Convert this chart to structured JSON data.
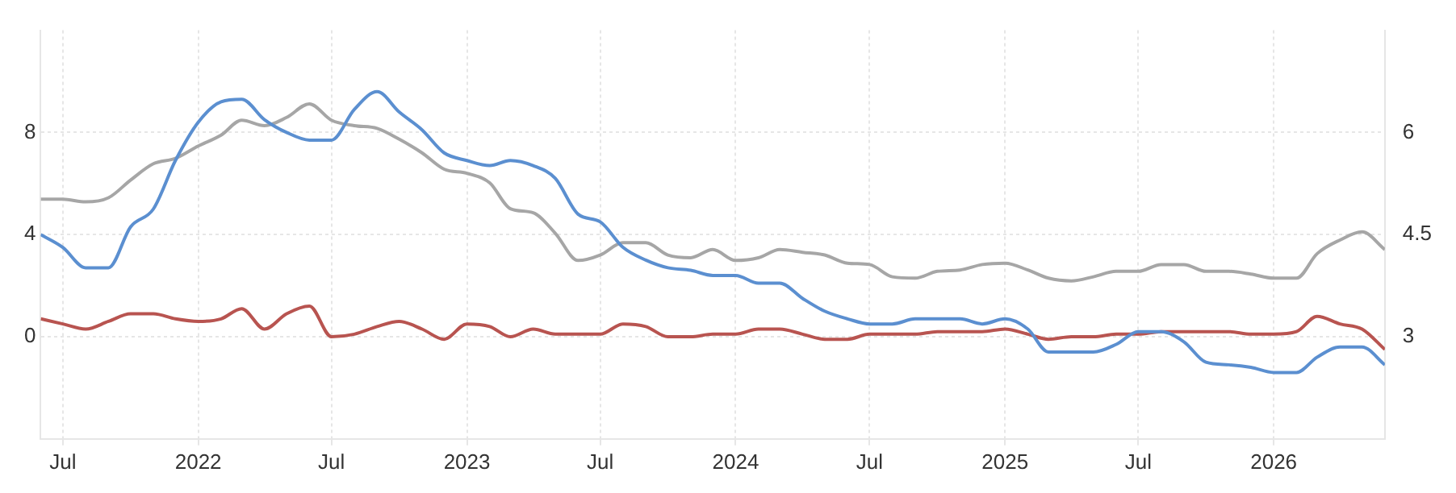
{
  "chart_data": {
    "type": "line",
    "x": [
      "2021-06",
      "2021-07",
      "2021-08",
      "2021-09",
      "2021-10",
      "2021-11",
      "2021-12",
      "2022-01",
      "2022-02",
      "2022-03",
      "2022-04",
      "2022-05",
      "2022-06",
      "2022-07",
      "2022-08",
      "2022-09",
      "2022-10",
      "2022-11",
      "2022-12",
      "2023-01",
      "2023-02",
      "2023-03",
      "2023-04",
      "2023-05",
      "2023-06",
      "2023-07",
      "2023-08",
      "2023-09",
      "2023-10",
      "2023-11",
      "2023-12",
      "2024-01",
      "2024-02",
      "2024-03",
      "2024-04",
      "2024-05",
      "2024-06",
      "2024-07",
      "2024-08",
      "2024-09",
      "2024-10",
      "2024-11",
      "2024-12",
      "2025-01",
      "2025-02",
      "2025-03",
      "2025-04",
      "2025-05",
      "2025-06",
      "2025-07",
      "2025-08",
      "2025-09",
      "2025-10",
      "2025-11",
      "2025-12",
      "2026-01",
      "2026-02",
      "2026-03",
      "2026-04",
      "2026-05",
      "2026-06"
    ],
    "series": [
      {
        "color": "#5b8fd0",
        "values": [
          4.0,
          3.5,
          2.7,
          2.7,
          4.3,
          5.0,
          6.9,
          8.4,
          9.2,
          9.3,
          8.5,
          8.0,
          7.7,
          7.7,
          8.9,
          9.6,
          8.8,
          8.1,
          7.2,
          6.9,
          6.7,
          6.9,
          6.7,
          6.2,
          4.8,
          4.5,
          3.5,
          3.0,
          2.7,
          2.6,
          2.4,
          2.4,
          2.1,
          2.1,
          1.5,
          1.0,
          0.7,
          0.5,
          0.5,
          0.7,
          0.7,
          0.7,
          0.5,
          0.7,
          0.3,
          -0.6,
          -0.6,
          -0.6,
          -0.3,
          0.2,
          0.2,
          -0.2,
          -1.0,
          -1.1,
          -1.2,
          -1.4,
          -1.4,
          -0.8,
          -0.4,
          -0.4,
          -1.1
        ]
      },
      {
        "color": "#a6a6a6",
        "axis": "y2",
        "values": [
          5.02,
          5.02,
          4.98,
          5.04,
          5.3,
          5.54,
          5.62,
          5.8,
          5.96,
          6.18,
          6.1,
          6.22,
          6.42,
          6.18,
          6.1,
          6.06,
          5.9,
          5.7,
          5.46,
          5.4,
          5.26,
          4.88,
          4.82,
          4.52,
          4.12,
          4.2,
          4.38,
          4.38,
          4.2,
          4.16,
          4.28,
          4.12,
          4.16,
          4.28,
          4.24,
          4.2,
          4.08,
          4.06,
          3.88,
          3.86,
          3.96,
          3.98,
          4.06,
          4.08,
          3.98,
          3.86,
          3.82,
          3.88,
          3.96,
          3.96,
          4.06,
          4.06,
          3.96,
          3.96,
          3.92,
          3.86,
          3.86,
          4.22,
          4.42,
          4.54,
          4.28
        ]
      },
      {
        "color": "#b85450",
        "values": [
          0.7,
          0.5,
          0.3,
          0.6,
          0.9,
          0.9,
          0.7,
          0.6,
          0.7,
          1.1,
          0.3,
          0.9,
          1.2,
          0.0,
          0.1,
          0.4,
          0.6,
          0.3,
          -0.1,
          0.5,
          0.4,
          0.0,
          0.3,
          0.1,
          0.1,
          0.1,
          0.5,
          0.4,
          0.0,
          0.0,
          0.1,
          0.1,
          0.3,
          0.3,
          0.1,
          -0.1,
          -0.1,
          0.1,
          0.1,
          0.1,
          0.2,
          0.2,
          0.2,
          0.3,
          0.1,
          -0.1,
          0.0,
          0.0,
          0.1,
          0.1,
          0.2,
          0.2,
          0.2,
          0.2,
          0.1,
          0.1,
          0.2,
          0.8,
          0.5,
          0.3,
          -0.5
        ]
      }
    ],
    "xlim": [
      "2021-06",
      "2026-06"
    ],
    "xticks": [
      {
        "value": "2021-07",
        "label": "Jul"
      },
      {
        "value": "2022-01",
        "label": "2022"
      },
      {
        "value": "2022-07",
        "label": "Jul"
      },
      {
        "value": "2023-01",
        "label": "2023"
      },
      {
        "value": "2023-07",
        "label": "Jul"
      },
      {
        "value": "2024-01",
        "label": "2024"
      },
      {
        "value": "2024-07",
        "label": "Jul"
      },
      {
        "value": "2025-01",
        "label": "2025"
      },
      {
        "value": "2025-07",
        "label": "Jul"
      },
      {
        "value": "2026-01",
        "label": "2026"
      }
    ],
    "ylim": [
      -4,
      12
    ],
    "yticks": [
      0,
      4,
      8
    ],
    "y2lim": [
      1.5,
      7.5
    ],
    "y2ticks": [
      3,
      4.5,
      6
    ],
    "grid": true,
    "legend": false,
    "marker": "none",
    "line_style": "solid"
  }
}
